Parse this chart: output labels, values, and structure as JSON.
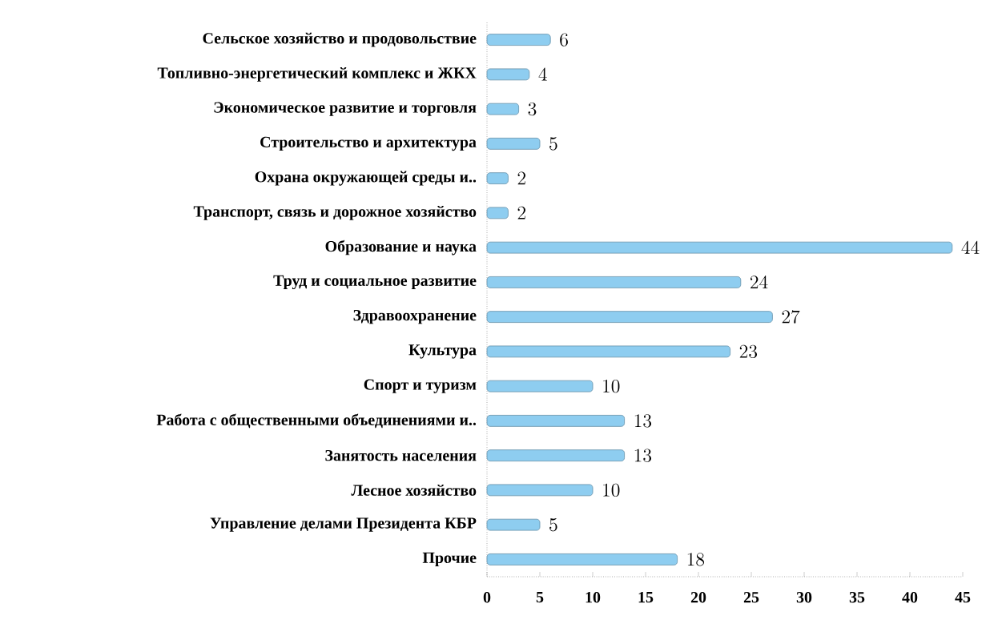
{
  "chart_data": {
    "type": "bar",
    "orientation": "horizontal",
    "categories": [
      "Сельское хозяйство и продовольствие",
      "Топливно-энергетический комплекс и ЖКХ",
      "Экономическое развитие и торговля",
      "Строительство и архитектура",
      "Охрана окружающей среды и..",
      "Транспорт, связь и дорожное хозяйство",
      "Образование и наука",
      "Труд и социальное развитие",
      "Здравоохранение",
      "Культура",
      "Спорт и туризм",
      "Работа с общественными объединениями и..",
      "Занятость населения",
      "Лесное хозяйство",
      "Управление делами Президента КБР",
      "Прочие"
    ],
    "values": [
      6,
      4,
      3,
      5,
      2,
      2,
      44,
      24,
      27,
      23,
      10,
      13,
      13,
      10,
      5,
      18
    ],
    "color": "#8ecdf0",
    "xlim": [
      0,
      45
    ],
    "xticks": [
      0,
      5,
      10,
      15,
      20,
      25,
      30,
      35,
      40,
      45
    ],
    "data_labels": true
  }
}
